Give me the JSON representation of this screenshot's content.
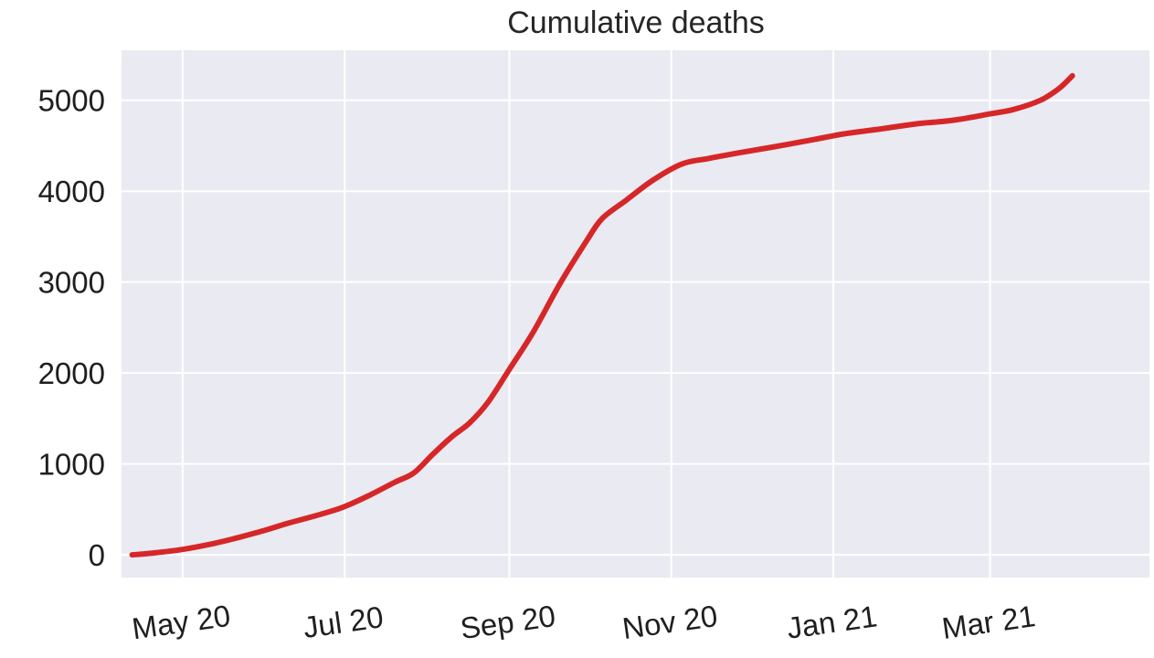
{
  "chart_data": {
    "type": "line",
    "title": "Cumulative deaths",
    "xlabel": "",
    "ylabel": "",
    "x_axis_type": "date",
    "xlim": [
      "2020-04-08",
      "2021-04-30"
    ],
    "ylim": [
      -250,
      5550
    ],
    "x_ticks": [
      {
        "date": "2020-05-01",
        "label": "May 20"
      },
      {
        "date": "2020-07-01",
        "label": "Jul 20"
      },
      {
        "date": "2020-09-01",
        "label": "Sep 20"
      },
      {
        "date": "2020-11-01",
        "label": "Nov 20"
      },
      {
        "date": "2021-01-01",
        "label": "Jan 21"
      },
      {
        "date": "2021-03-01",
        "label": "Mar 21"
      }
    ],
    "y_ticks": [
      {
        "value": 0,
        "label": "0"
      },
      {
        "value": 1000,
        "label": "1000"
      },
      {
        "value": 2000,
        "label": "2000"
      },
      {
        "value": 3000,
        "label": "3000"
      },
      {
        "value": 4000,
        "label": "4000"
      },
      {
        "value": 5000,
        "label": "5000"
      }
    ],
    "grid": true,
    "legend": "none",
    "colors": {
      "plot_background": "#EAEAF2",
      "grid": "#FFFFFF",
      "line": "#D62728"
    },
    "series": [
      {
        "points": [
          {
            "x": "2020-04-12",
            "y": 0
          },
          {
            "x": "2020-04-20",
            "y": 20
          },
          {
            "x": "2020-05-01",
            "y": 60
          },
          {
            "x": "2020-05-12",
            "y": 120
          },
          {
            "x": "2020-05-22",
            "y": 190
          },
          {
            "x": "2020-06-01",
            "y": 270
          },
          {
            "x": "2020-06-10",
            "y": 350
          },
          {
            "x": "2020-06-20",
            "y": 430
          },
          {
            "x": "2020-06-30",
            "y": 520
          },
          {
            "x": "2020-07-10",
            "y": 650
          },
          {
            "x": "2020-07-20",
            "y": 800
          },
          {
            "x": "2020-07-27",
            "y": 900
          },
          {
            "x": "2020-08-03",
            "y": 1100
          },
          {
            "x": "2020-08-10",
            "y": 1290
          },
          {
            "x": "2020-08-17",
            "y": 1450
          },
          {
            "x": "2020-08-24",
            "y": 1680
          },
          {
            "x": "2020-09-01",
            "y": 2040
          },
          {
            "x": "2020-09-10",
            "y": 2450
          },
          {
            "x": "2020-09-20",
            "y": 2980
          },
          {
            "x": "2020-09-30",
            "y": 3450
          },
          {
            "x": "2020-10-06",
            "y": 3700
          },
          {
            "x": "2020-10-15",
            "y": 3900
          },
          {
            "x": "2020-10-25",
            "y": 4120
          },
          {
            "x": "2020-11-05",
            "y": 4300
          },
          {
            "x": "2020-11-15",
            "y": 4360
          },
          {
            "x": "2020-11-26",
            "y": 4420
          },
          {
            "x": "2020-12-10",
            "y": 4490
          },
          {
            "x": "2020-12-25",
            "y": 4570
          },
          {
            "x": "2021-01-05",
            "y": 4630
          },
          {
            "x": "2021-01-20",
            "y": 4690
          },
          {
            "x": "2021-02-01",
            "y": 4740
          },
          {
            "x": "2021-02-15",
            "y": 4780
          },
          {
            "x": "2021-03-01",
            "y": 4850
          },
          {
            "x": "2021-03-10",
            "y": 4900
          },
          {
            "x": "2021-03-20",
            "y": 5000
          },
          {
            "x": "2021-03-27",
            "y": 5130
          },
          {
            "x": "2021-04-01",
            "y": 5270
          }
        ]
      }
    ]
  }
}
